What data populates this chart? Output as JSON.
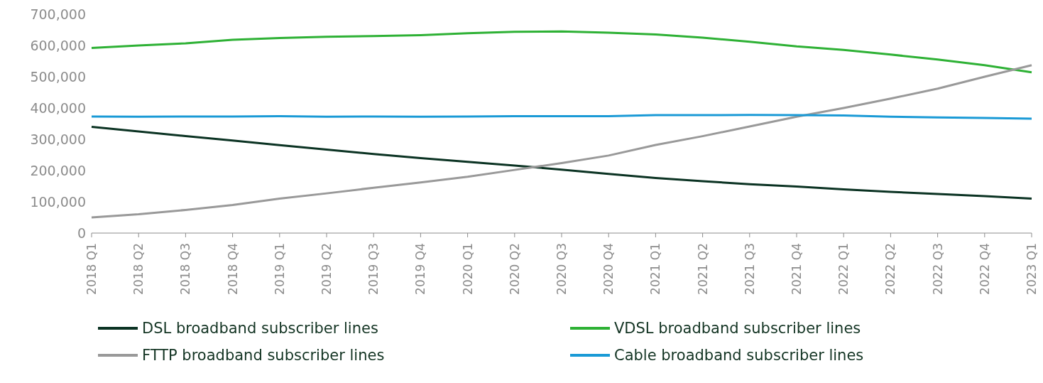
{
  "chart_data": {
    "type": "line",
    "categories": [
      "2018 Q1",
      "2018 Q2",
      "2018 Q3",
      "2018 Q4",
      "2019 Q1",
      "2019 Q2",
      "2019 Q3",
      "2019 Q4",
      "2020 Q1",
      "2020 Q2",
      "2020 Q3",
      "2020 Q4",
      "2021 Q1",
      "2021 Q2",
      "2021 Q3",
      "2021 Q4",
      "2022 Q1",
      "2022 Q2",
      "2022 Q3",
      "2022 Q4",
      "2023 Q1"
    ],
    "series": [
      {
        "name": "DSL broadband subscriber lines",
        "color": "#0b3323",
        "values": [
          340000,
          325000,
          310000,
          296000,
          281000,
          267000,
          253000,
          240000,
          228000,
          216000,
          203000,
          189000,
          176000,
          166000,
          156000,
          149000,
          140000,
          132000,
          125000,
          118000,
          110000
        ]
      },
      {
        "name": "VDSL broadband subscriber lines",
        "color": "#2eb135",
        "values": [
          592000,
          600000,
          607000,
          618000,
          624000,
          628000,
          630000,
          633000,
          639000,
          644000,
          645000,
          641000,
          635000,
          625000,
          612000,
          597000,
          586000,
          571000,
          555000,
          537000,
          514000
        ]
      },
      {
        "name": "FTTP broadband subscriber lines",
        "color": "#999999",
        "values": [
          50000,
          60000,
          74000,
          90000,
          110000,
          127000,
          145000,
          162000,
          180000,
          202000,
          224000,
          248000,
          282000,
          310000,
          341000,
          372000,
          400000,
          430000,
          462000,
          500000,
          537000
        ]
      },
      {
        "name": "Cable broadband subscriber lines",
        "color": "#1a9ad6",
        "values": [
          373000,
          372000,
          373000,
          373000,
          374000,
          372000,
          373000,
          372000,
          373000,
          374000,
          374000,
          374000,
          377000,
          377000,
          378000,
          377000,
          376000,
          372000,
          370000,
          368000,
          366000
        ]
      }
    ],
    "ylim": [
      0,
      700000
    ],
    "yticks": [
      0,
      {
        "value": 100000,
        "label": "100,000"
      },
      {
        "value": 200000,
        "label": "200,000"
      },
      {
        "value": 300000,
        "label": "300,000"
      },
      {
        "value": 400000,
        "label": "400,000"
      },
      {
        "value": 500000,
        "label": "500,000"
      },
      {
        "value": 600000,
        "label": "600,000"
      },
      {
        "value": 700000,
        "label": "700,000"
      }
    ],
    "grid": false,
    "legend": "bottom",
    "marker": "none",
    "line_style": "solid"
  }
}
